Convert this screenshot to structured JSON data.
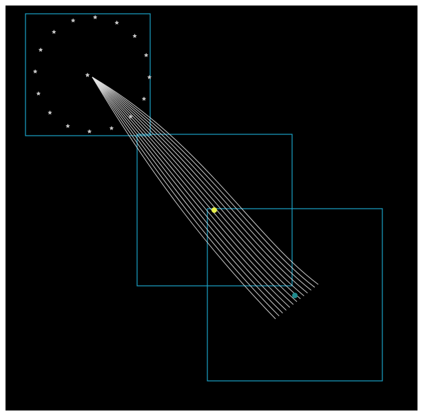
{
  "scene": {
    "background_color": "#000000",
    "box_color": "#1ba3c9",
    "trail_color": "#e6e6e6",
    "marker_color": "#c8c8c8",
    "regions": [
      {
        "name": "region-top-left"
      },
      {
        "name": "region-middle"
      },
      {
        "name": "region-bottom-right"
      }
    ],
    "markers": {
      "count": 16,
      "origin_marker": "star-icon"
    },
    "trail_count": 13,
    "points": [
      {
        "name": "yellow-point",
        "color": "#e8f04a"
      },
      {
        "name": "teal-point",
        "color": "#1f8b8e"
      }
    ]
  }
}
